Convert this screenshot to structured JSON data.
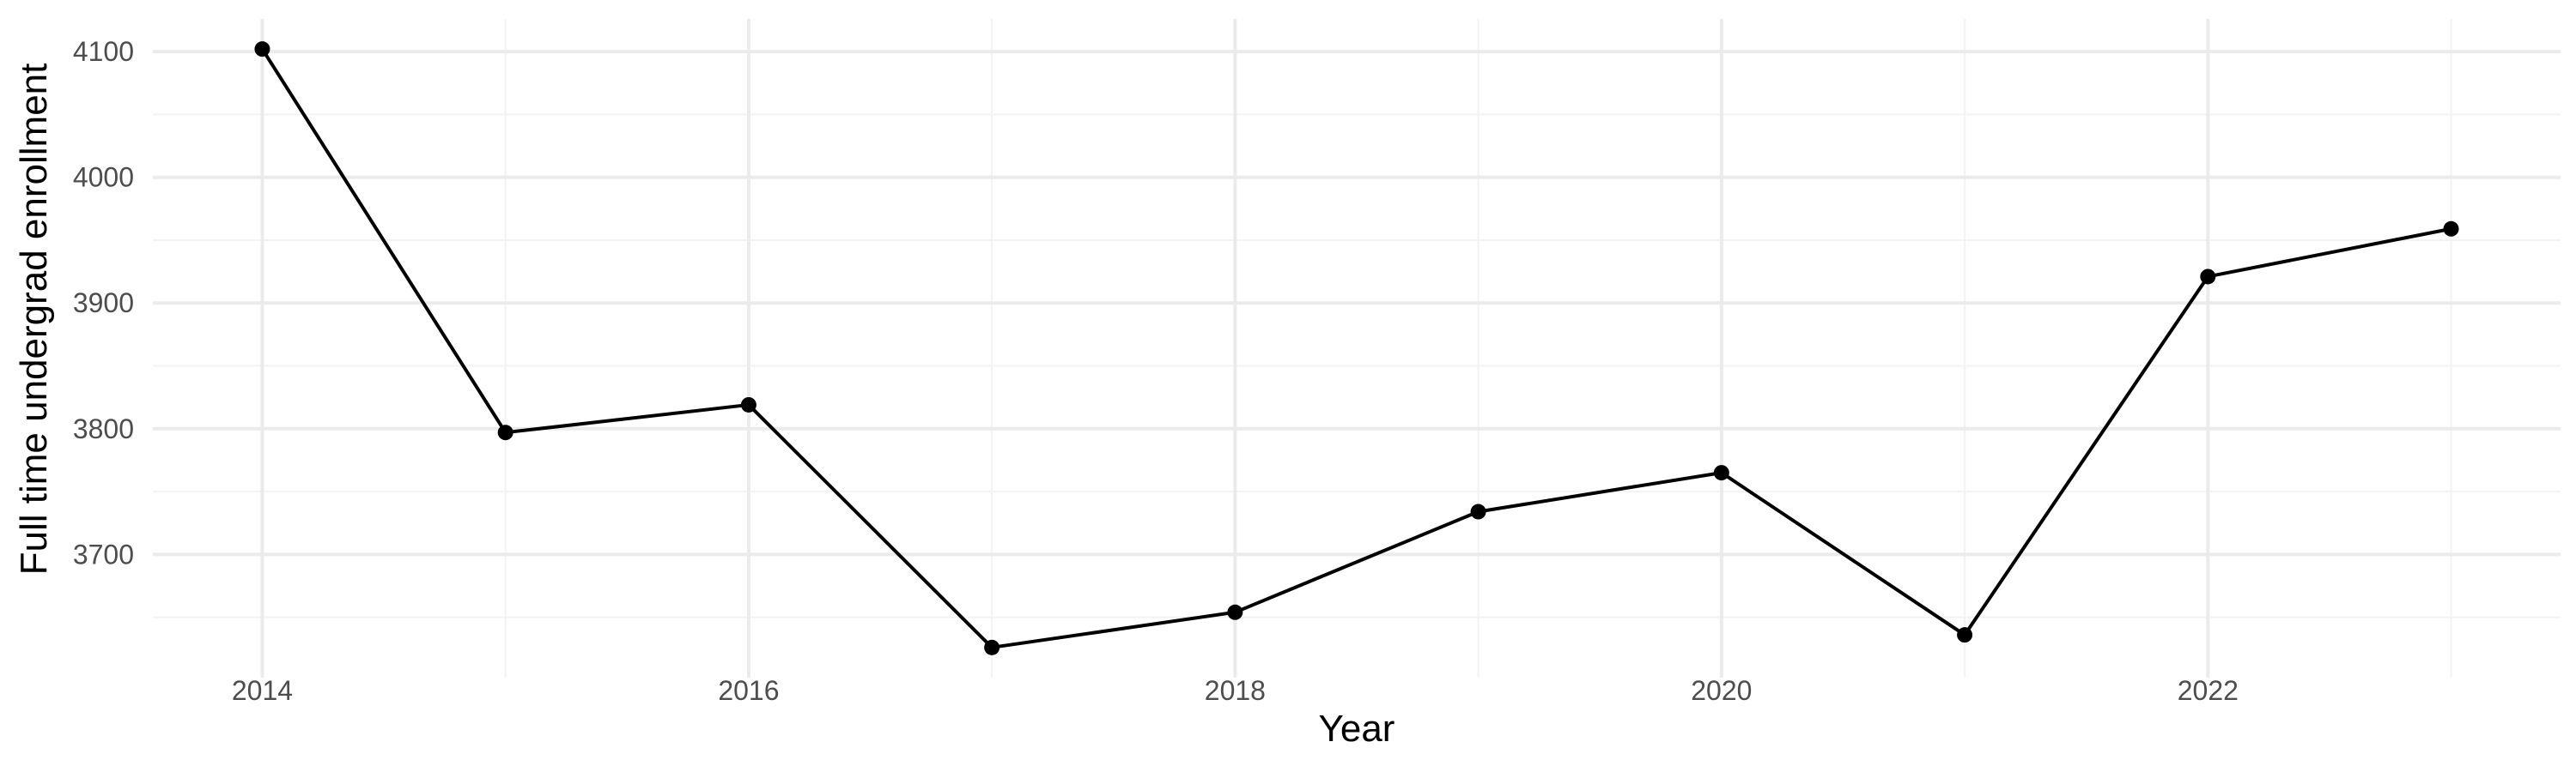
{
  "chart_data": {
    "type": "line",
    "title": "",
    "xlabel": "Year",
    "ylabel": "Full time undergrad enrollment",
    "x": [
      2014,
      2015,
      2016,
      2017,
      2018,
      2019,
      2020,
      2021,
      2022,
      2023
    ],
    "series": [
      {
        "values": [
          4102,
          3797,
          3819,
          3626,
          3654,
          3734,
          3765,
          3636,
          3921,
          3959
        ],
        "color": "#000000",
        "markers": true
      }
    ],
    "x_ticks": [
      2014,
      2016,
      2018,
      2020,
      2022
    ],
    "x_tick_labels": [
      "2014",
      "2016",
      "2018",
      "2020",
      "2022"
    ],
    "y_ticks": [
      3700,
      3800,
      3900,
      4000,
      4100
    ],
    "y_tick_labels": [
      "3700",
      "3800",
      "3900",
      "4000",
      "4100"
    ],
    "xlim": [
      2013.55,
      2023.45
    ],
    "ylim": [
      3602,
      4126
    ],
    "grid": true,
    "legend": "none",
    "background": "#ffffff",
    "grid_color": "#ebebeb"
  }
}
